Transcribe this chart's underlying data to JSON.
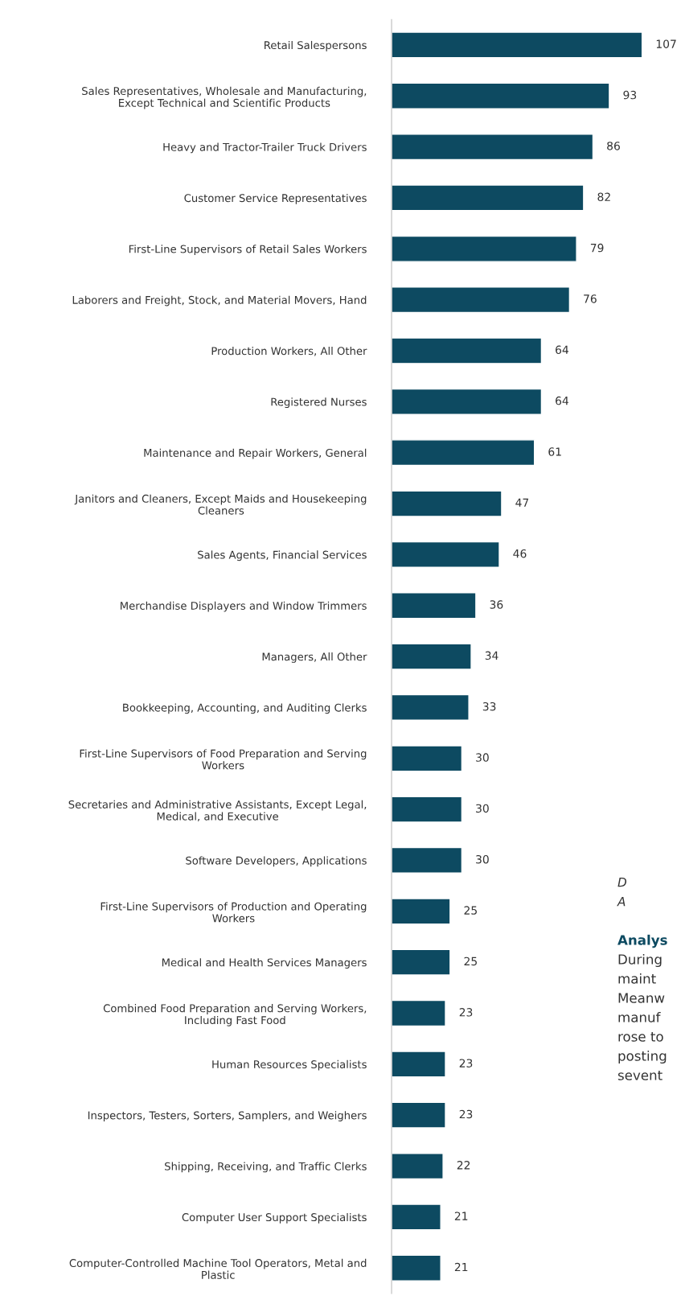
{
  "chart_data": {
    "type": "bar",
    "orientation": "horizontal",
    "data_labels": true,
    "grid": false,
    "legend": false,
    "color": "#0d4a61",
    "categories": [
      "Retail Salespersons",
      "Sales Representatives, Wholesale and Manufacturing,\nExcept Technical and Scientific Products",
      "Heavy and Tractor-Trailer Truck Drivers",
      "Customer Service Representatives",
      "First-Line Supervisors of Retail Sales Workers",
      "Laborers and Freight, Stock, and Material Movers, Hand",
      "Production Workers, All Other",
      "Registered Nurses",
      "Maintenance and Repair Workers, General",
      "Janitors and Cleaners, Except Maids and Housekeeping\nCleaners",
      "Sales Agents, Financial Services",
      "Merchandise Displayers and Window Trimmers",
      "Managers, All Other",
      "Bookkeeping, Accounting, and Auditing Clerks",
      "First-Line Supervisors of Food Preparation and Serving\nWorkers",
      "Secretaries and Administrative Assistants, Except Legal,\nMedical, and Executive",
      "Software Developers, Applications",
      "First-Line Supervisors of Production and Operating\nWorkers",
      "Medical and Health Services Managers",
      "Combined Food Preparation and Serving Workers,\nIncluding Fast Food",
      "Human Resources Specialists",
      "Inspectors, Testers, Sorters, Samplers, and Weighers",
      "Shipping, Receiving, and Traffic Clerks",
      "Computer User Support Specialists",
      "Computer-Controlled Machine Tool Operators, Metal and\nPlastic"
    ],
    "values": [
      107,
      93,
      86,
      82,
      79,
      76,
      64,
      64,
      61,
      47,
      46,
      36,
      34,
      33,
      30,
      30,
      30,
      25,
      25,
      23,
      23,
      23,
      22,
      21,
      21
    ],
    "annotations": [
      "D",
      "A",
      "Analys",
      "During",
      "maint",
      "Meanw",
      "manuf",
      "rose to",
      "posting",
      "sevent"
    ]
  }
}
